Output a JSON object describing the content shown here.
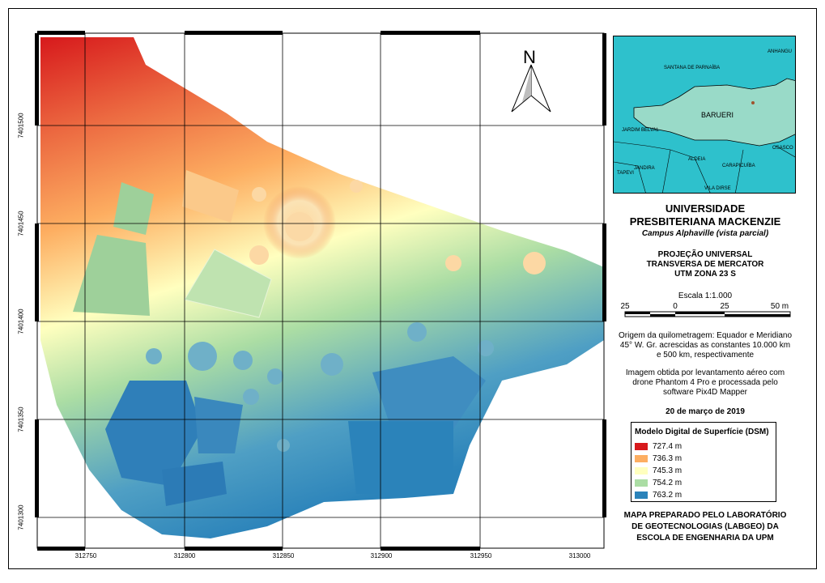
{
  "north_arrow": {
    "label": "N"
  },
  "axes": {
    "x_ticks": [
      "312750",
      "312800",
      "312850",
      "312900",
      "312950",
      "313000"
    ],
    "y_ticks": [
      "7401500",
      "7401450",
      "7401400",
      "7401350",
      "7401300"
    ]
  },
  "inset_map": {
    "labels": [
      "SANTANA DE PARNAÍBA",
      "ANHANGU",
      "BARUERI",
      "JARDIM BELVAL",
      "OSASCO",
      "JANDIRA",
      "ALDEIA",
      "CARAPICUÍBA",
      "TAPEVI",
      "VILA DIRSE"
    ],
    "fill_color": "#99dac8",
    "background_color": "#2ec1cc"
  },
  "title": {
    "line1": "UNIVERSIDADE",
    "line2": "PRESBITERIANA MACKENZIE",
    "subtitle": "Campus Alphaville (vista parcial)"
  },
  "projection": {
    "line1": "PROJEÇÃO UNIVERSAL",
    "line2": "TRANSVERSA DE MERCATOR",
    "line3": "UTM ZONA 23 S"
  },
  "scale": {
    "title": "Escala 1:1.000",
    "labels": [
      "25",
      "0",
      "25",
      "50 m"
    ]
  },
  "notes": {
    "origin_1": "Origem da quilometragem: Equador e Meridiano",
    "origin_2": "45° W. Gr. acrescidas as constantes 10.000 km",
    "origin_3": "e 500 km, respectivamente",
    "image_1": "Imagem obtida por levantamento aéreo com",
    "image_2": "drone Phantom 4 Pro e processada pelo",
    "image_3": "software Pix4D Mapper"
  },
  "date": "20 de março de 2019",
  "legend": {
    "title": "Modelo Digital de Superfície (DSM)",
    "items": [
      {
        "label": "727.4 m",
        "color": "#d7191c"
      },
      {
        "label": "736.3 m",
        "color": "#fdae61"
      },
      {
        "label": "745.3 m",
        "color": "#ffffbf"
      },
      {
        "label": "754.2 m",
        "color": "#abdda4"
      },
      {
        "label": "763.2 m",
        "color": "#2b83ba"
      }
    ]
  },
  "credit": {
    "line1": "MAPA PREPARADO PELO LABORATÓRIO",
    "line2": "DE GEOTECNOLOGIAS (LABGEO) DA",
    "line3": "ESCOLA DE ENGENHARIA DA UPM"
  }
}
